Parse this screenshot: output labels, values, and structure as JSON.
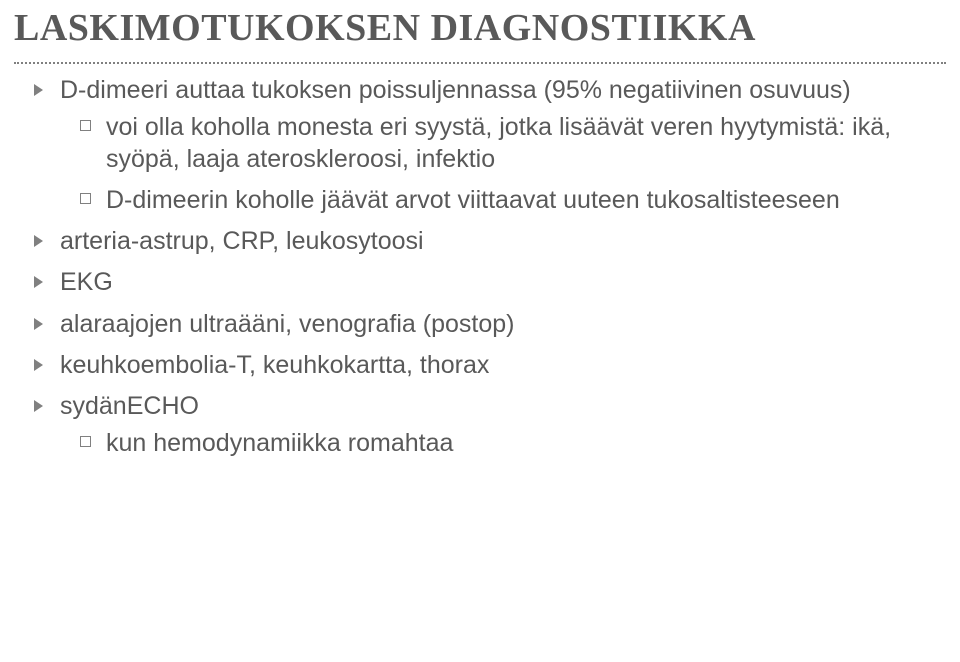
{
  "title": "LASKIMOTUKOKSEN DIAGNOSTIIKKA",
  "bullets": [
    {
      "text": "D-dimeeri auttaa tukoksen poissuljennassa (95% negatiivinen osuvuus)",
      "children": [
        {
          "text": "voi olla koholla monesta eri syystä, jotka lisäävät veren hyytymistä: ikä, syöpä, laaja ateroskleroosi, infektio"
        },
        {
          "text": "D-dimeerin koholle jäävät arvot viittaavat uuteen tukosaltisteeseen"
        }
      ]
    },
    {
      "text": "arteria-astrup, CRP, leukosytoosi"
    },
    {
      "text": "EKG"
    },
    {
      "text": "alaraajojen ultraääni, venografia (postop)"
    },
    {
      "text": "keuhkoembolia-T, keuhkokartta, thorax"
    },
    {
      "text": "sydänECHO",
      "children": [
        {
          "text": "kun hemodynamiikka romahtaa"
        }
      ]
    }
  ],
  "colors": {
    "title": "#595959",
    "body_text": "#595959",
    "bullet_arrow": "#808080",
    "bullet_square_border": "#808080",
    "rule": "#808080",
    "background": "#ffffff"
  },
  "fonts": {
    "title_family": "Georgia, 'Times New Roman', serif",
    "title_size_pt": 29,
    "title_weight": "bold",
    "body_family": "Arial, Helvetica, sans-serif",
    "body_size_pt": 19
  }
}
